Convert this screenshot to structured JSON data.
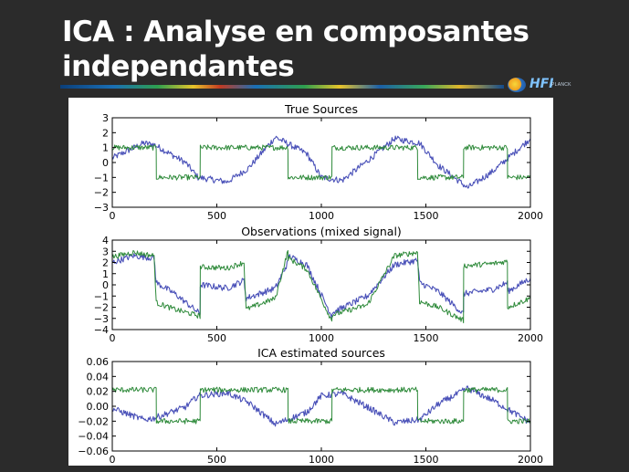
{
  "slide": {
    "title_line1": "ICA : Analyse en composantes",
    "title_line2": "independantes",
    "logo_text": "HFI",
    "logo_subtext": "PLANCK"
  },
  "colors": {
    "series_blue": "#4950b8",
    "series_green": "#2e8a3a",
    "background": "#2b2b2b"
  },
  "chart_data": [
    {
      "type": "line",
      "title": "True Sources",
      "xlim": [
        0,
        2000
      ],
      "ylim": [
        -3,
        3
      ],
      "xticks": [
        0,
        500,
        1000,
        1500,
        2000
      ],
      "yticks": [
        -3,
        -2,
        -1,
        0,
        1,
        2,
        3
      ],
      "series": [
        {
          "color": "blue",
          "x": [
            0,
            150,
            200,
            350,
            410,
            550,
            650,
            780,
            930,
            1000,
            1100,
            1220,
            1350,
            1470,
            1560,
            1700,
            1820,
            2000
          ],
          "values": [
            0.3,
            1.3,
            1.2,
            0.0,
            -1.0,
            -1.3,
            -0.4,
            1.7,
            0.6,
            -1.0,
            -1.2,
            0.1,
            1.6,
            1.3,
            -0.2,
            -1.7,
            -0.6,
            1.6
          ]
        },
        {
          "color": "green",
          "x": [
            0,
            210,
            211,
            420,
            421,
            840,
            841,
            1050,
            1051,
            1460,
            1461,
            1680,
            1681,
            1890,
            1891,
            2000
          ],
          "values": [
            1.0,
            1.0,
            -1.0,
            -1.0,
            1.0,
            1.0,
            -1.0,
            -1.0,
            1.0,
            1.0,
            -1.0,
            -1.0,
            1.0,
            1.0,
            -1.0,
            -1.0
          ]
        }
      ]
    },
    {
      "type": "line",
      "title": "Observations (mixed signal)",
      "xlim": [
        0,
        2000
      ],
      "ylim": [
        -4,
        4
      ],
      "xticks": [
        0,
        500,
        1000,
        1500,
        2000
      ],
      "yticks": [
        -4,
        -3,
        -2,
        -1,
        0,
        1,
        2,
        3,
        4
      ],
      "series": [
        {
          "color": "blue",
          "x": [
            0,
            100,
            200,
            210,
            300,
            420,
            421,
            550,
            630,
            640,
            780,
            840,
            841,
            930,
            1050,
            1051,
            1220,
            1350,
            1460,
            1470,
            1560,
            1680,
            1681,
            1820,
            1890,
            1891,
            2000
          ],
          "values": [
            2.0,
            2.6,
            2.4,
            0.2,
            -0.8,
            -2.6,
            0.0,
            -0.3,
            0.4,
            -1.2,
            -0.3,
            2.0,
            2.6,
            1.8,
            -2.8,
            -2.5,
            -1.0,
            1.8,
            2.2,
            0.2,
            -0.6,
            -2.6,
            -0.8,
            -0.4,
            0.2,
            -0.6,
            0.6
          ]
        },
        {
          "color": "green",
          "x": [
            0,
            100,
            200,
            210,
            300,
            420,
            421,
            550,
            630,
            640,
            780,
            840,
            841,
            930,
            1050,
            1051,
            1220,
            1350,
            1460,
            1470,
            1560,
            1680,
            1681,
            1820,
            1890,
            1891,
            2000
          ],
          "values": [
            2.5,
            2.9,
            2.6,
            -1.6,
            -2.2,
            -2.8,
            1.6,
            1.5,
            2.0,
            -2.2,
            -1.2,
            3.0,
            2.4,
            1.4,
            -3.2,
            -2.7,
            -1.8,
            2.6,
            2.9,
            -1.5,
            -2.0,
            -3.2,
            1.7,
            1.9,
            2.1,
            -2.0,
            -1.2
          ]
        }
      ]
    },
    {
      "type": "line",
      "title": "ICA estimated sources",
      "xlim": [
        0,
        2000
      ],
      "ylim": [
        -0.06,
        0.06
      ],
      "xticks": [
        0,
        500,
        1000,
        1500,
        2000
      ],
      "yticks": [
        -0.06,
        -0.04,
        -0.02,
        0.0,
        0.02,
        0.04,
        0.06
      ],
      "ytick_labels": [
        "−0.06",
        "−0.04",
        "−0.02",
        "0.00",
        "0.02",
        "0.04",
        "0.06"
      ],
      "series": [
        {
          "color": "blue",
          "x": [
            0,
            150,
            200,
            350,
            410,
            550,
            650,
            780,
            930,
            1000,
            1100,
            1220,
            1350,
            1470,
            1560,
            1700,
            1820,
            2000
          ],
          "values": [
            -0.003,
            -0.018,
            -0.016,
            -0.001,
            0.014,
            0.018,
            0.005,
            -0.024,
            -0.008,
            0.014,
            0.017,
            -0.001,
            -0.022,
            -0.018,
            0.003,
            0.024,
            0.008,
            -0.022
          ]
        },
        {
          "color": "green",
          "x": [
            0,
            210,
            211,
            420,
            421,
            840,
            841,
            1050,
            1051,
            1460,
            1461,
            1680,
            1681,
            1890,
            1891,
            2000
          ],
          "values": [
            0.022,
            0.022,
            -0.02,
            -0.02,
            0.022,
            0.022,
            -0.02,
            -0.02,
            0.022,
            0.022,
            -0.02,
            -0.02,
            0.022,
            0.022,
            -0.02,
            -0.02
          ]
        }
      ]
    }
  ]
}
